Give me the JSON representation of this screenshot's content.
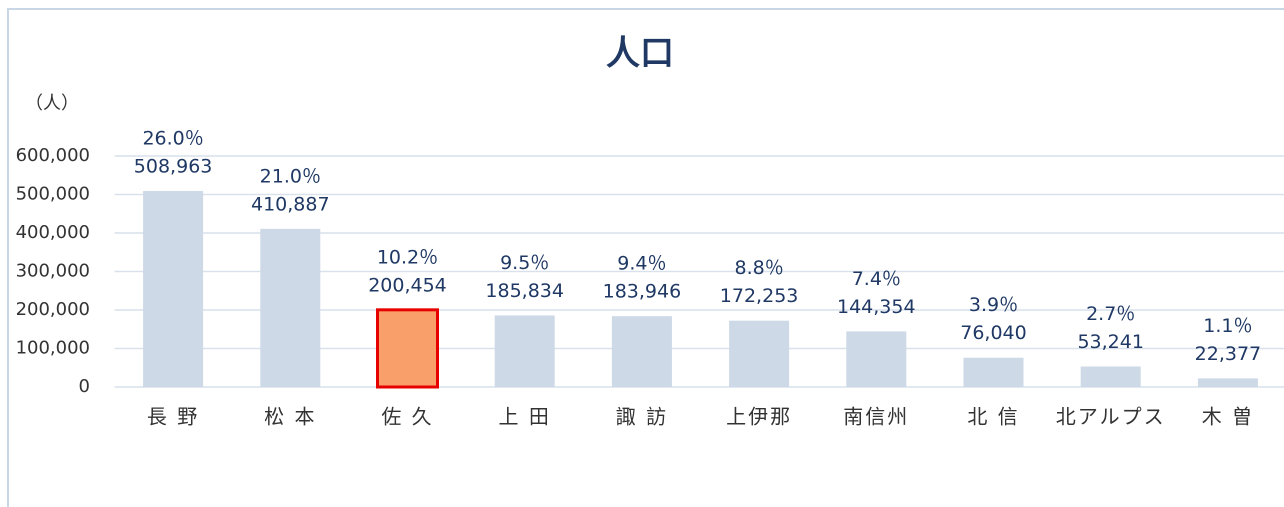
{
  "chart_data": {
    "type": "bar",
    "title": "人口",
    "y_axis_label": "（人）",
    "categories": [
      "長 野",
      "松 本",
      "佐 久",
      "上 田",
      "諏 訪",
      "上伊那",
      "南信州",
      "北 信",
      "北アルプス",
      "木 曽"
    ],
    "values": [
      508963,
      410887,
      200454,
      185834,
      183946,
      172253,
      144354,
      76040,
      53241,
      22377
    ],
    "value_labels": [
      "508,963",
      "410,887",
      "200,454",
      "185,834",
      "183,946",
      "172,253",
      "144,354",
      "76,040",
      "53,241",
      "22,377"
    ],
    "shares": [
      26.0,
      21.0,
      10.2,
      9.5,
      9.4,
      8.8,
      7.4,
      3.9,
      2.7,
      1.1
    ],
    "share_labels": [
      "26.0％",
      "21.0％",
      "10.2％",
      "9.5％",
      "9.4％",
      "8.8％",
      "7.4％",
      "3.9％",
      "2.7％",
      "1.1％"
    ],
    "colors": [
      "#cdd9e6",
      "#cdd9e6",
      "#f9a06a",
      "#cdd9e6",
      "#cdd9e6",
      "#cdd9e6",
      "#cdd9e6",
      "#cdd9e6",
      "#cdd9e6",
      "#cdd9e6"
    ],
    "edge_colors": [
      null,
      null,
      "#e60000",
      null,
      null,
      null,
      null,
      null,
      null,
      null
    ],
    "ylim": [
      0,
      600000
    ],
    "yticks": [
      0,
      {
        "value": 100000,
        "label": "100,000"
      },
      {
        "value": 200000,
        "label": "200,000"
      },
      {
        "value": 300000,
        "label": "300,000"
      },
      {
        "value": 400000,
        "label": "400,000"
      },
      {
        "value": 500000,
        "label": "500,000"
      },
      {
        "value": 600000,
        "label": "600,000"
      }
    ],
    "grid": true
  }
}
